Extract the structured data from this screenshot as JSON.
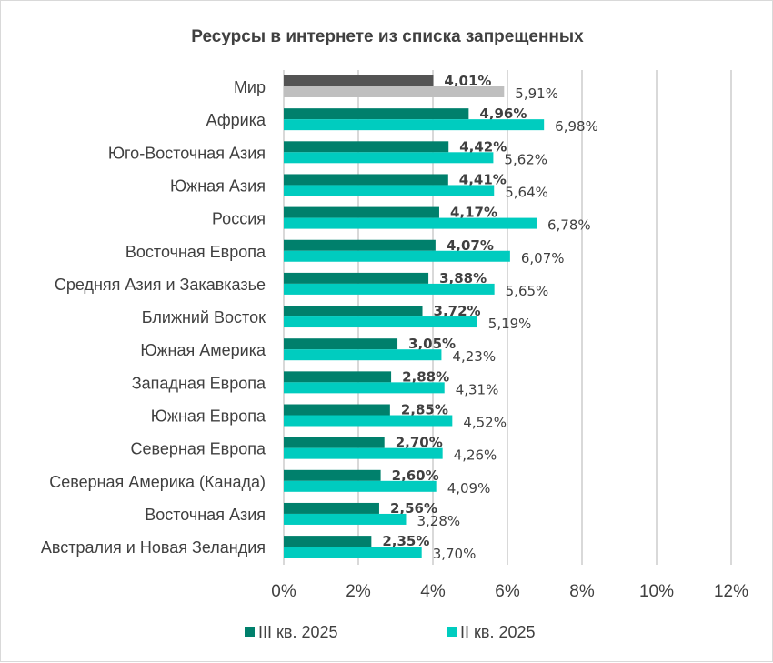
{
  "chart_data": {
    "type": "bar",
    "orientation": "horizontal",
    "title": "Ресурсы в интернете из списка запрещенных",
    "categories": [
      "Мир",
      "Африка",
      "Юго-Восточная Азия",
      "Южная Азия",
      "Россия",
      "Восточная Европа",
      "Средняя Азия и Закавказье",
      "Ближний Восток",
      "Южная Америка",
      "Западная Европа",
      "Южная Европа",
      "Северная Европа",
      "Северная Америка (Канада)",
      "Восточная Азия",
      "Австралия и Новая Зеландия"
    ],
    "series": [
      {
        "name": "III кв. 2025",
        "color": "#00806c",
        "highlight_color": "#545454",
        "values": [
          4.01,
          4.96,
          4.42,
          4.41,
          4.17,
          4.07,
          3.88,
          3.72,
          3.05,
          2.88,
          2.85,
          2.7,
          2.6,
          2.56,
          2.35
        ],
        "labels": [
          "4,01%",
          "4,96%",
          "4,42%",
          "4,41%",
          "4,17%",
          "4,07%",
          "3,88%",
          "3,72%",
          "3,05%",
          "2,88%",
          "2,85%",
          "2,70%",
          "2,60%",
          "2,56%",
          "2,35%"
        ]
      },
      {
        "name": "II кв. 2025",
        "color": "#00ccbf",
        "highlight_color": "#bfbfbf",
        "values": [
          5.91,
          6.98,
          5.62,
          5.64,
          6.78,
          6.07,
          5.65,
          5.19,
          4.23,
          4.31,
          4.52,
          4.26,
          4.09,
          3.28,
          3.7
        ],
        "labels": [
          "5,91%",
          "6,98%",
          "5,62%",
          "5,64%",
          "6,78%",
          "6,07%",
          "5,65%",
          "5,19%",
          "4,23%",
          "4,31%",
          "4,52%",
          "4,26%",
          "4,09%",
          "3,28%",
          "3,70%"
        ]
      }
    ],
    "xlim": [
      0,
      12
    ],
    "xticks": [
      "0%",
      "2%",
      "4%",
      "6%",
      "8%",
      "10%",
      "12%"
    ],
    "grid": true,
    "legend_position": "bottom"
  }
}
